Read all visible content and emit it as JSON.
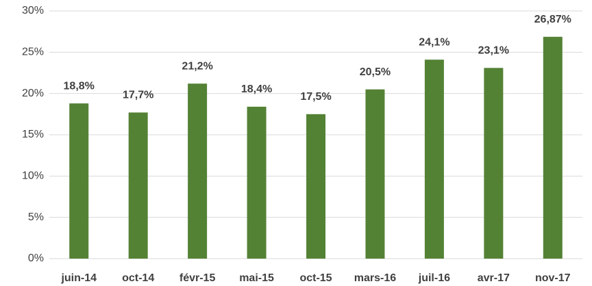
{
  "chart_data": {
    "type": "bar",
    "categories": [
      "juin-14",
      "oct-14",
      "févr-15",
      "mai-15",
      "oct-15",
      "mars-16",
      "juil-16",
      "avr-17",
      "nov-17"
    ],
    "values": [
      18.8,
      17.7,
      21.2,
      18.4,
      17.5,
      20.5,
      24.1,
      23.1,
      26.87
    ],
    "value_labels": [
      "18,8%",
      "17,7%",
      "21,2%",
      "18,4%",
      "17,5%",
      "20,5%",
      "24,1%",
      "23,1%",
      "26,87%"
    ],
    "color": "#548235",
    "ylim": [
      0,
      30
    ],
    "yticks": [
      {
        "value": 0,
        "label": "0%"
      },
      {
        "value": 5,
        "label": "5%"
      },
      {
        "value": 10,
        "label": "10%"
      },
      {
        "value": 15,
        "label": "15%"
      },
      {
        "value": 20,
        "label": "20%"
      },
      {
        "value": 25,
        "label": "25%"
      },
      {
        "value": 30,
        "label": "30%"
      }
    ],
    "grid": true
  }
}
